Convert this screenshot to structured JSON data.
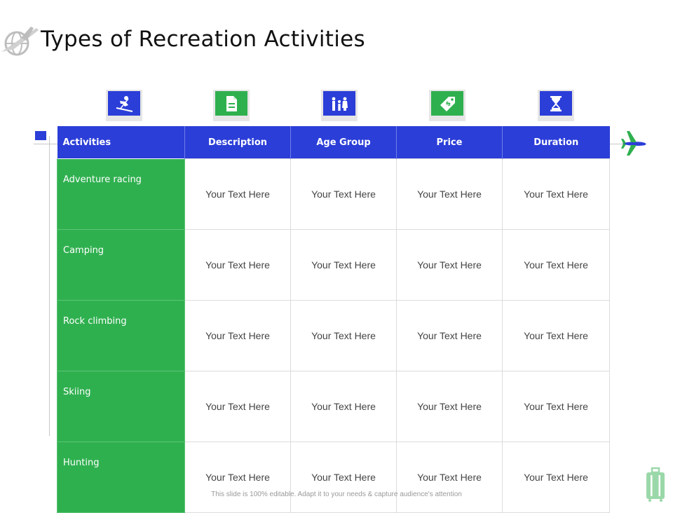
{
  "title": "Types of Recreation Activities",
  "table": {
    "headers": [
      "Activities",
      "Description",
      "Age Group",
      "Price",
      "Duration"
    ],
    "rows": [
      {
        "activity": "Adventure racing",
        "cells": [
          "Your Text Here",
          "Your Text Here",
          "Your Text Here",
          "Your Text Here"
        ]
      },
      {
        "activity": "Camping",
        "cells": [
          "Your Text Here",
          "Your Text Here",
          "Your Text Here",
          "Your Text Here"
        ]
      },
      {
        "activity": "Rock climbing",
        "cells": [
          "Your Text Here",
          "Your Text Here",
          "Your Text Here",
          "Your Text Here"
        ]
      },
      {
        "activity": "Skiing",
        "cells": [
          "Your Text Here",
          "Your Text Here",
          "Your Text Here",
          "Your Text Here"
        ]
      },
      {
        "activity": "Hunting",
        "cells": [
          "Your Text Here",
          "Your Text Here",
          "Your Text Here",
          "Your Text Here"
        ]
      }
    ]
  },
  "header_icons": [
    {
      "name": "skier-icon",
      "color": "#2b3ed8"
    },
    {
      "name": "document-icon",
      "color": "#2fb04f"
    },
    {
      "name": "family-icon",
      "color": "#2b3ed8"
    },
    {
      "name": "price-tag-icon",
      "color": "#2fb04f"
    },
    {
      "name": "hourglass-icon",
      "color": "#2b3ed8"
    }
  ],
  "footer": "This slide is 100% editable. Adapt it to your needs & capture audience's attention",
  "colors": {
    "blue": "#2b3ed8",
    "green": "#2fb04f"
  }
}
